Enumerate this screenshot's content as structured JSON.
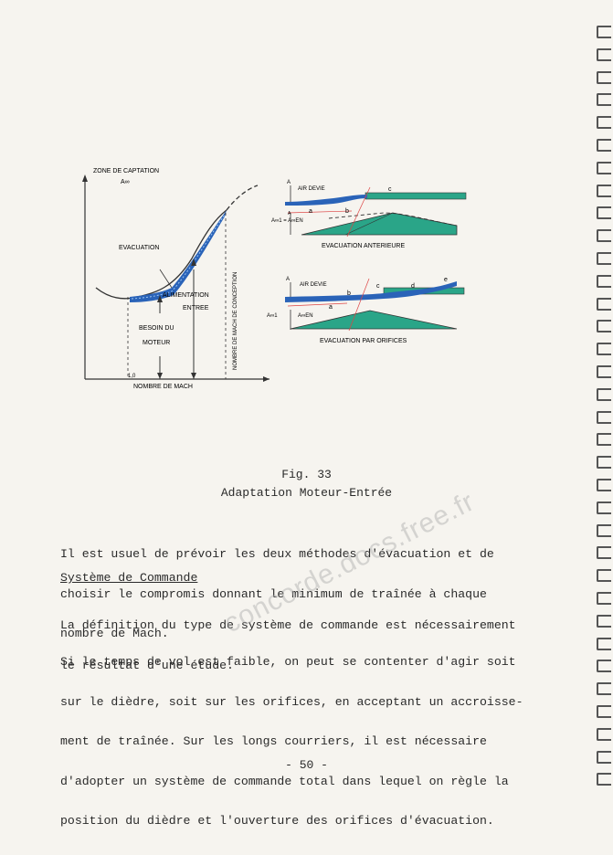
{
  "figure": {
    "graph": {
      "y_title": "ZONE DE CAPTATION",
      "y_sub": "A∞",
      "x_title": "NOMBRE DE MACH",
      "evacuation": "EVACUATION",
      "alimentation_1": "ALIMENTATION",
      "alimentation_2": "ENTREE",
      "besoin_1": "BESOIN DU",
      "besoin_2": "MOTEUR",
      "mach_conception": "NOMBRE DE MACH DE CONCEPTION",
      "m10": "1,0"
    },
    "diagram_top": {
      "a": "A",
      "air_devie": "AIR DEVIE",
      "a_inf": "A∞1 = A∞EN",
      "a_en": "A",
      "label_a": "a",
      "label_b": "b",
      "label_c": "c",
      "caption": "EVACUATION ANTERIEURE"
    },
    "diagram_bottom": {
      "a": "A",
      "air_devie": "AIR DEVIE",
      "a_inf": "A∞1",
      "a_en": "A∞EN",
      "label_a": "a",
      "label_b": "b",
      "label_c": "c",
      "label_d": "d",
      "label_e": "e",
      "caption": "EVACUATION PAR ORIFICES"
    }
  },
  "caption": {
    "fig": "Fig. 33",
    "title": "Adaptation Moteur-Entrée"
  },
  "paragraphs": {
    "p1": [
      "Il est usuel de prévoir les deux méthodes d'évacuation et de",
      "choisir le compromis donnant le minimum de traînée à chaque",
      "nombre de Mach."
    ],
    "heading": "Système de Commande",
    "p2": [
      "La définition du type de système de commande est nécessairement",
      "le résultat d'une étude."
    ],
    "p3": [
      "Si le temps de vol est faible, on peut se contenter d'agir soit",
      "sur le dièdre, soit sur les orifices, en acceptant un accroisse-",
      "ment de traînée. Sur les longs courriers, il est nécessaire",
      "d'adopter un système de commande total dans lequel on règle la",
      "position du dièdre et l'ouverture des orifices d'évacuation."
    ]
  },
  "page_number": "- 50 -",
  "watermark": "concorde.docs.free.fr",
  "colors": {
    "flow": "#2a63b8",
    "ramp": "#2aa588",
    "paper": "#f6f4ef"
  }
}
